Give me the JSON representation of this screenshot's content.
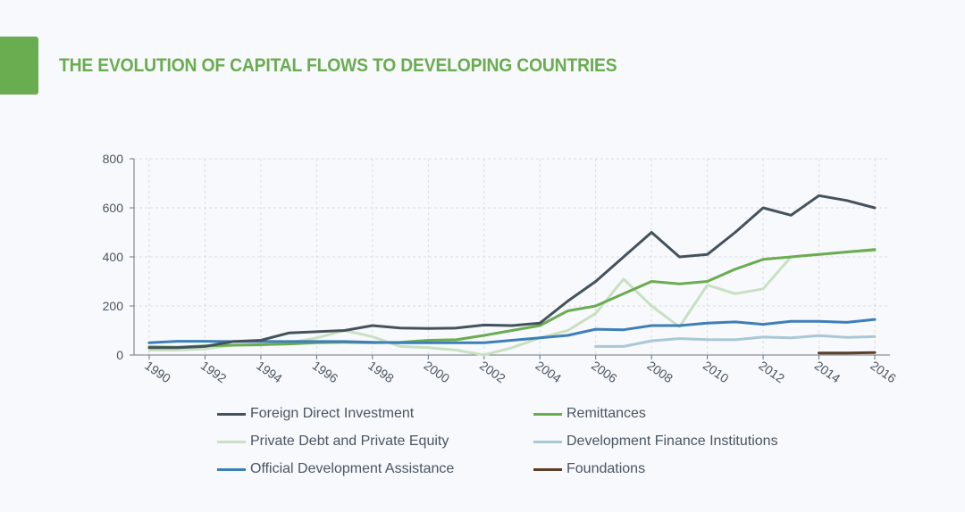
{
  "header": {
    "title": "THE EVOLUTION OF CAPITAL FLOWS TO DEVELOPING COUNTRIES",
    "accent_color": "#6aac50"
  },
  "chart_data": {
    "type": "line",
    "title": "THE EVOLUTION OF CAPITAL FLOWS TO DEVELOPING COUNTRIES",
    "xlabel": "",
    "ylabel": "",
    "xlim": [
      1990,
      2016
    ],
    "ylim": [
      0,
      800
    ],
    "x_ticks": [
      "1990",
      "1992",
      "1994",
      "1996",
      "1998",
      "2000",
      "2002",
      "2004",
      "2006",
      "2008",
      "2010",
      "2012",
      "2014",
      "2016"
    ],
    "y_ticks": [
      "0",
      "200",
      "400",
      "600",
      "800"
    ],
    "grid": true,
    "legend_position": "bottom",
    "series": [
      {
        "name": "Foreign Direct Investment",
        "color": "#45525c",
        "points": [
          [
            1990,
            30
          ],
          [
            1991,
            30
          ],
          [
            1992,
            35
          ],
          [
            1993,
            55
          ],
          [
            1994,
            60
          ],
          [
            1995,
            90
          ],
          [
            1996,
            95
          ],
          [
            1997,
            100
          ],
          [
            1998,
            120
          ],
          [
            1999,
            110
          ],
          [
            2000,
            108
          ],
          [
            2001,
            110
          ],
          [
            2002,
            122
          ],
          [
            2003,
            120
          ],
          [
            2004,
            130
          ],
          [
            2005,
            220
          ],
          [
            2006,
            300
          ],
          [
            2007,
            400
          ],
          [
            2008,
            500
          ],
          [
            2009,
            400
          ],
          [
            2010,
            410
          ],
          [
            2011,
            500
          ],
          [
            2012,
            600
          ],
          [
            2013,
            570
          ],
          [
            2014,
            650
          ],
          [
            2015,
            630
          ],
          [
            2016,
            600
          ]
        ]
      },
      {
        "name": "Remittances",
        "color": "#6aac50",
        "points": [
          [
            1990,
            33
          ],
          [
            1991,
            32
          ],
          [
            1992,
            37
          ],
          [
            1993,
            40
          ],
          [
            1994,
            42
          ],
          [
            1995,
            45
          ],
          [
            1996,
            50
          ],
          [
            1997,
            52
          ],
          [
            1998,
            50
          ],
          [
            1999,
            52
          ],
          [
            2000,
            60
          ],
          [
            2001,
            62
          ],
          [
            2002,
            80
          ],
          [
            2003,
            100
          ],
          [
            2004,
            120
          ],
          [
            2005,
            180
          ],
          [
            2006,
            200
          ],
          [
            2007,
            250
          ],
          [
            2008,
            300
          ],
          [
            2009,
            290
          ],
          [
            2010,
            300
          ],
          [
            2011,
            350
          ],
          [
            2012,
            390
          ],
          [
            2013,
            400
          ],
          [
            2014,
            410
          ],
          [
            2015,
            420
          ],
          [
            2016,
            430
          ]
        ]
      },
      {
        "name": "Private Debt and Private Equity",
        "color": "#c9e0c2",
        "points": [
          [
            1990,
            20
          ],
          [
            1991,
            20
          ],
          [
            1992,
            25
          ],
          [
            1993,
            40
          ],
          [
            1994,
            40
          ],
          [
            1995,
            50
          ],
          [
            1996,
            70
          ],
          [
            1997,
            100
          ],
          [
            1998,
            75
          ],
          [
            1999,
            35
          ],
          [
            2000,
            30
          ],
          [
            2001,
            20
          ],
          [
            2002,
            0
          ],
          [
            2003,
            30
          ],
          [
            2004,
            70
          ],
          [
            2005,
            100
          ],
          [
            2006,
            170
          ],
          [
            2007,
            310
          ],
          [
            2008,
            200
          ],
          [
            2009,
            115
          ],
          [
            2010,
            285
          ],
          [
            2011,
            250
          ],
          [
            2012,
            270
          ],
          [
            2013,
            400
          ],
          [
            2014,
            410
          ],
          [
            2015,
            420
          ],
          [
            2016,
            425
          ]
        ]
      },
      {
        "name": "Development Finance Institutions",
        "color": "#a9c8d6",
        "points": [
          [
            2006,
            35
          ],
          [
            2007,
            35
          ],
          [
            2008,
            58
          ],
          [
            2009,
            67
          ],
          [
            2010,
            63
          ],
          [
            2011,
            62
          ],
          [
            2012,
            73
          ],
          [
            2013,
            70
          ],
          [
            2014,
            79
          ],
          [
            2015,
            72
          ],
          [
            2016,
            75
          ]
        ]
      },
      {
        "name": "Official Development Assistance",
        "color": "#3d7fb9",
        "points": [
          [
            1990,
            50
          ],
          [
            1991,
            56
          ],
          [
            1992,
            56
          ],
          [
            1993,
            55
          ],
          [
            1994,
            55
          ],
          [
            1995,
            55
          ],
          [
            1996,
            55
          ],
          [
            1997,
            55
          ],
          [
            1998,
            52
          ],
          [
            1999,
            50
          ],
          [
            2000,
            50
          ],
          [
            2001,
            50
          ],
          [
            2002,
            50
          ],
          [
            2003,
            60
          ],
          [
            2004,
            70
          ],
          [
            2005,
            80
          ],
          [
            2006,
            105
          ],
          [
            2007,
            103
          ],
          [
            2008,
            120
          ],
          [
            2009,
            120
          ],
          [
            2010,
            130
          ],
          [
            2011,
            135
          ],
          [
            2012,
            125
          ],
          [
            2013,
            137
          ],
          [
            2014,
            137
          ],
          [
            2015,
            133
          ],
          [
            2016,
            145
          ]
        ]
      },
      {
        "name": "Foundations",
        "color": "#5c3f24",
        "points": [
          [
            2014,
            8
          ],
          [
            2015,
            8
          ],
          [
            2016,
            10
          ]
        ]
      }
    ]
  }
}
